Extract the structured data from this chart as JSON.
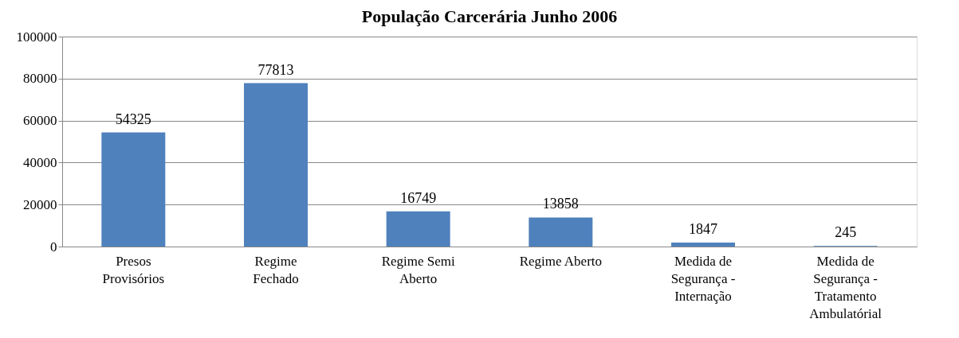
{
  "chart_data": {
    "type": "bar",
    "title": "População Carcerária Junho 2006",
    "categories": [
      "Presos\nProvisórios",
      "Regime\nFechado",
      "Regime Semi\nAberto",
      "Regime Aberto",
      "Medida de\nSegurança -\nInternação",
      "Medida de\nSegurança -\nTratamento\nAmbulatórial"
    ],
    "values": [
      54325,
      77813,
      16749,
      13858,
      1847,
      245
    ],
    "color": "#4f81bd",
    "ylim": [
      0,
      100000
    ],
    "yticks": [
      0,
      20000,
      40000,
      60000,
      80000,
      100000
    ],
    "grid": "y",
    "data_labels": true
  }
}
